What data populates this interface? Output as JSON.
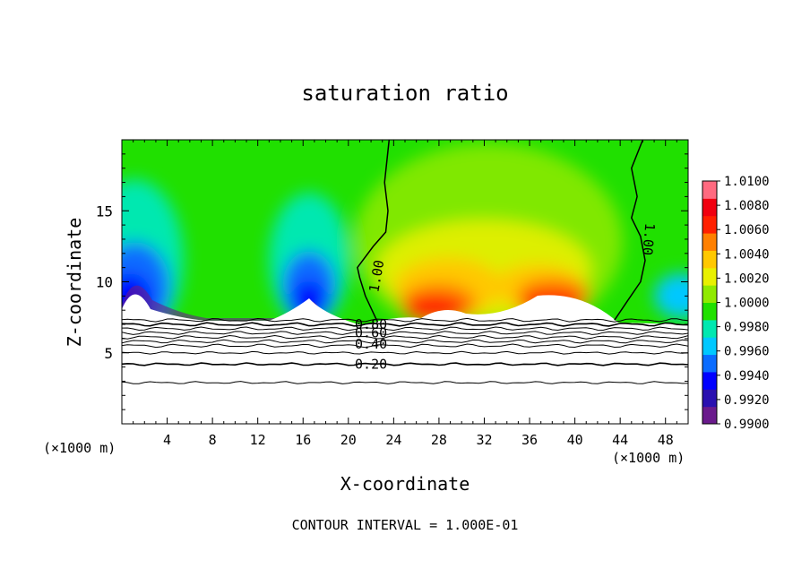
{
  "chart_data": {
    "type": "heatmap",
    "title": "saturation ratio",
    "xlabel": "X-coordinate",
    "ylabel": "Z-coordinate",
    "x_unit_left": "(×1000 m)",
    "x_unit_right": "(×1000 m)",
    "xlim": [
      0,
      50
    ],
    "ylim": [
      0,
      20
    ],
    "x_ticks": [
      4,
      8,
      12,
      16,
      20,
      24,
      28,
      32,
      36,
      40,
      44,
      48
    ],
    "y_ticks": [
      5,
      10,
      15
    ],
    "footer": "CONTOUR INTERVAL = 1.000E-01",
    "colorbar": {
      "min": 0.99,
      "max": 1.01,
      "labels": [
        "1.0100",
        "1.0080",
        "1.0060",
        "1.0040",
        "1.0020",
        "1.0000",
        "0.9980",
        "0.9960",
        "0.9940",
        "0.9920",
        "0.9900"
      ],
      "colors": [
        "#6a1a8c",
        "#2a10b0",
        "#0000ff",
        "#0a6cff",
        "#00c8ff",
        "#00e8b0",
        "#20e000",
        "#90ea00",
        "#e8f000",
        "#ffc800",
        "#ff8000",
        "#ff2000",
        "#f00010",
        "#ff6a80"
      ]
    },
    "contour_labels": [
      {
        "text": "0.80",
        "x": 22.0,
        "y": 7.0
      },
      {
        "text": "0.60",
        "x": 22.0,
        "y": 6.4
      },
      {
        "text": "0.40",
        "x": 22.0,
        "y": 5.6
      },
      {
        "text": "0.20",
        "x": 22.0,
        "y": 4.2
      },
      {
        "text": "1.00",
        "x": 22.5,
        "y": 10.4
      },
      {
        "text": "1.00",
        "x": 46.5,
        "y": 13.0
      }
    ]
  }
}
